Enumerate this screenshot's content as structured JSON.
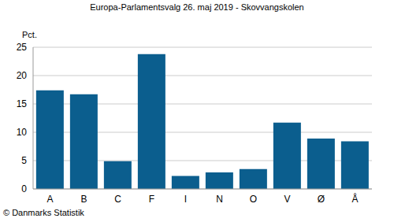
{
  "chart_data": {
    "type": "bar",
    "title": "Europa-Parlamentsvalg 26. maj 2019 - Skovvangskolen",
    "ylabel": "Pct.",
    "source": "© Danmarks Statistik",
    "categories": [
      "A",
      "B",
      "C",
      "F",
      "I",
      "N",
      "O",
      "V",
      "Ø",
      "Å"
    ],
    "values": [
      17.4,
      16.7,
      4.9,
      23.8,
      2.3,
      2.9,
      3.5,
      11.7,
      8.9,
      8.4
    ],
    "color": "#0b5e8e",
    "ylim": [
      0,
      25
    ],
    "yticks": [
      0,
      5,
      10,
      15,
      20,
      25
    ],
    "grid": true
  }
}
